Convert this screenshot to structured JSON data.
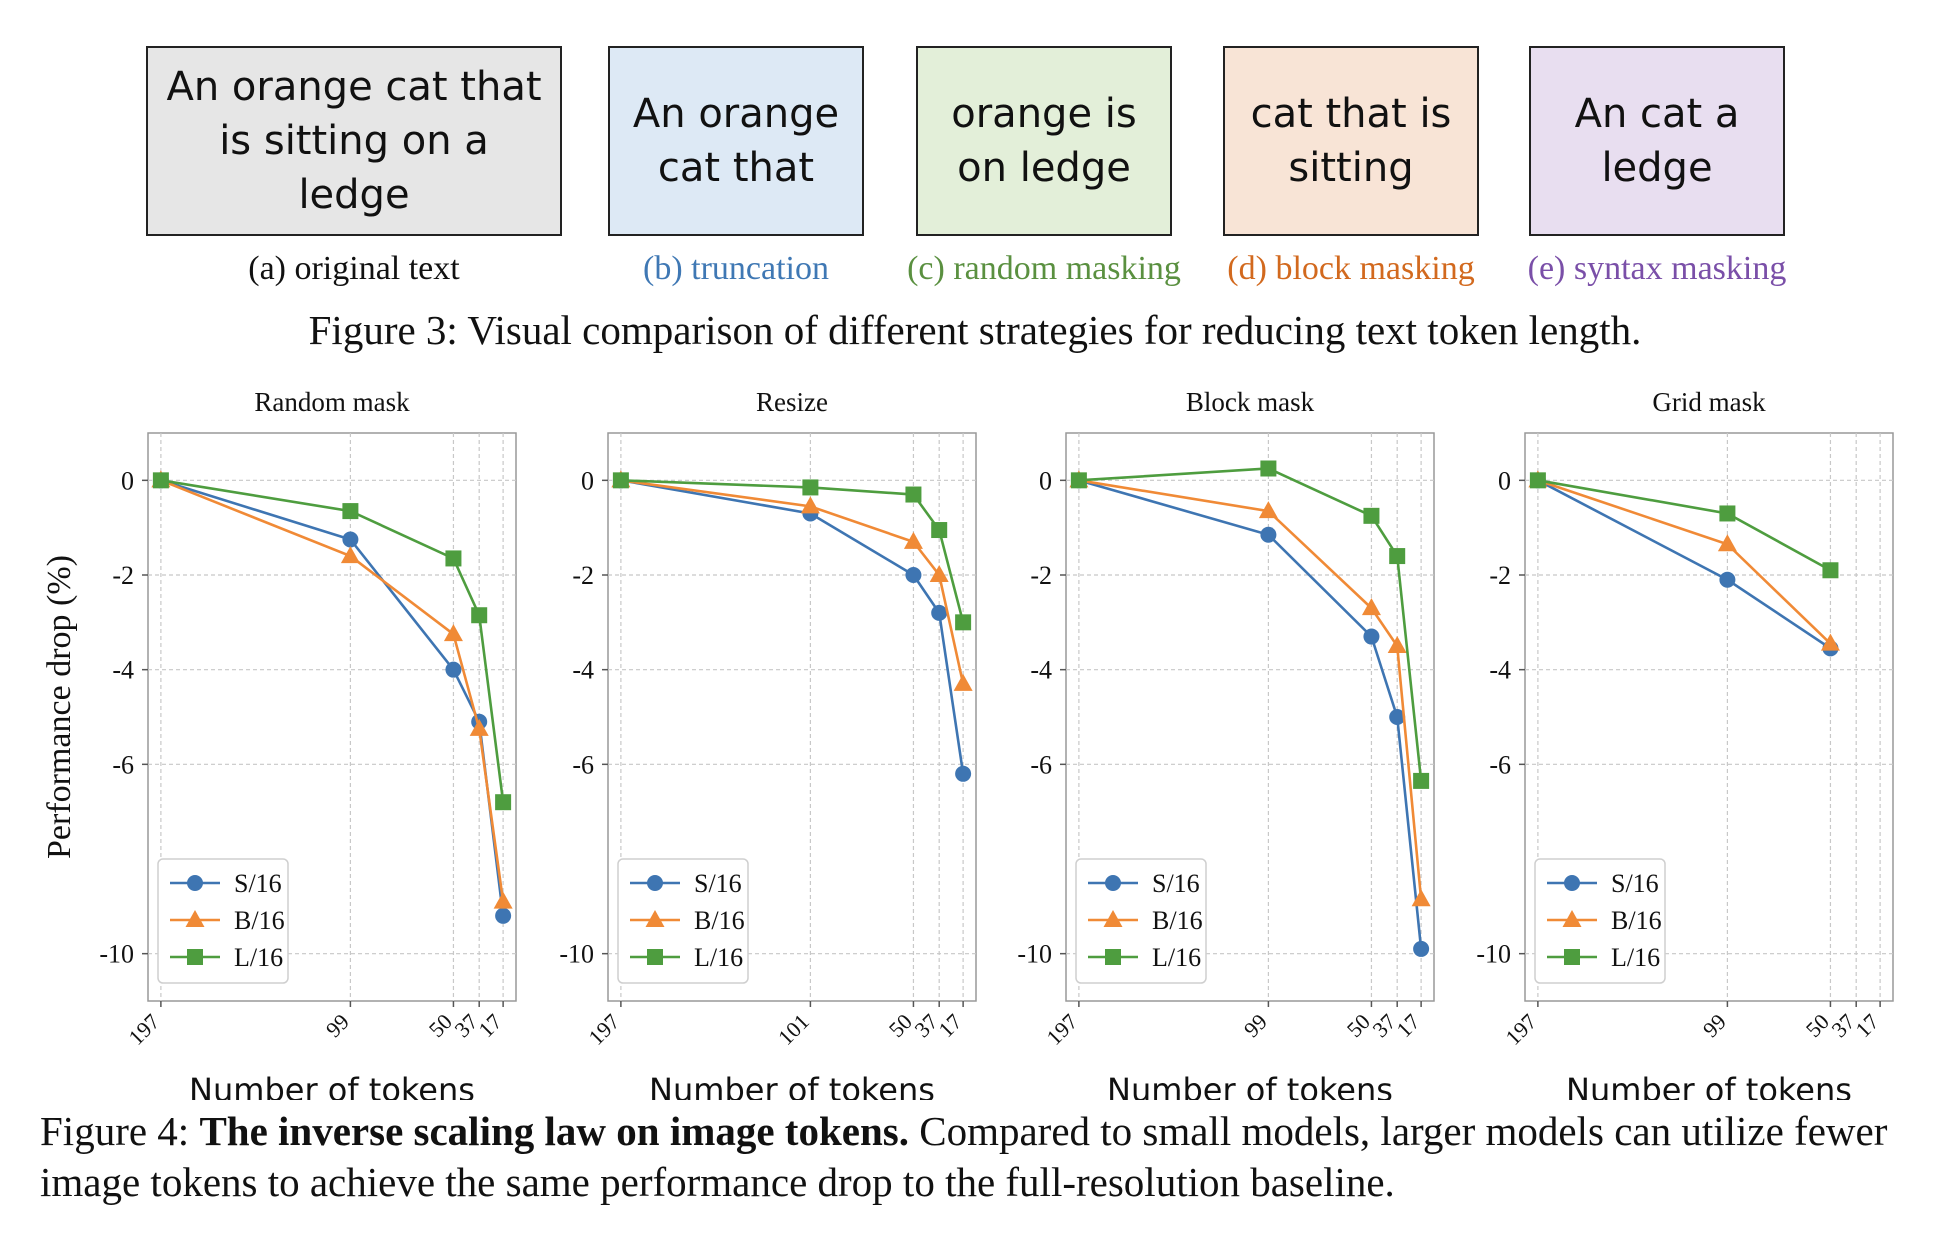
{
  "fig3": {
    "boxes": [
      {
        "text": "An orange cat that is sitting on a ledge",
        "caption": "(a) original text",
        "fill": "#e6e6e6",
        "caption_color": "#111111"
      },
      {
        "text": "An orange cat that",
        "caption": "(b) truncation",
        "fill": "#dde9f5",
        "caption_color": "#3f78b4"
      },
      {
        "text": "orange is on ledge",
        "caption": "(c) random masking",
        "fill": "#e3efd9",
        "caption_color": "#5a9040"
      },
      {
        "text": "cat that is sitting",
        "caption": "(d) block masking",
        "fill": "#f8e4d6",
        "caption_color": "#d2691e"
      },
      {
        "text": "An cat a ledge",
        "caption": "(e) syntax masking",
        "fill": "#e8def0",
        "caption_color": "#7a4fa8"
      }
    ],
    "caption": "Figure 3: Visual comparison of different strategies for reducing text token length."
  },
  "chart_data": [
    {
      "type": "line",
      "title": "Random mask",
      "xlabel": "Number of tokens",
      "ylabel": "Performance drop (%)",
      "x_ticks": [
        "197",
        "99",
        "50",
        "37",
        "17"
      ],
      "y_ticks": [
        0,
        -2,
        -4,
        -6,
        -10
      ],
      "ylim": [
        -11.0,
        1.0
      ],
      "grid": true,
      "legend": "bottom-left",
      "series": [
        {
          "name": "S/16",
          "color": "#3e75b2",
          "marker": "circle",
          "x": [
            "197",
            "99",
            "50",
            "37",
            "17"
          ],
          "y": [
            0,
            -1.25,
            -4.0,
            -5.1,
            -9.2
          ]
        },
        {
          "name": "B/16",
          "color": "#f08a36",
          "marker": "triangle",
          "x": [
            "197",
            "99",
            "50",
            "37",
            "17"
          ],
          "y": [
            0,
            -1.6,
            -3.25,
            -5.25,
            -8.9
          ]
        },
        {
          "name": "L/16",
          "color": "#4e9d3f",
          "marker": "square",
          "x": [
            "197",
            "99",
            "50",
            "37",
            "17"
          ],
          "y": [
            0,
            -0.65,
            -1.65,
            -2.85,
            -6.8
          ]
        }
      ]
    },
    {
      "type": "line",
      "title": "Resize",
      "xlabel": "Number of tokens",
      "ylabel": "",
      "x_ticks": [
        "197",
        "101",
        "50",
        "37",
        "17"
      ],
      "y_ticks": [
        0,
        -2,
        -4,
        -6,
        -10
      ],
      "ylim": [
        -11.0,
        1.0
      ],
      "grid": true,
      "legend": "bottom-left",
      "series": [
        {
          "name": "S/16",
          "color": "#3e75b2",
          "marker": "circle",
          "x": [
            "197",
            "101",
            "50",
            "37",
            "17"
          ],
          "y": [
            0,
            -0.7,
            -2.0,
            -2.8,
            -6.2
          ]
        },
        {
          "name": "B/16",
          "color": "#f08a36",
          "marker": "triangle",
          "x": [
            "197",
            "101",
            "50",
            "37",
            "17"
          ],
          "y": [
            0,
            -0.55,
            -1.3,
            -2.0,
            -4.3
          ]
        },
        {
          "name": "L/16",
          "color": "#4e9d3f",
          "marker": "square",
          "x": [
            "197",
            "101",
            "50",
            "37",
            "17"
          ],
          "y": [
            0,
            -0.15,
            -0.3,
            -1.05,
            -3.0
          ]
        }
      ]
    },
    {
      "type": "line",
      "title": "Block mask",
      "xlabel": "Number of tokens",
      "ylabel": "",
      "x_ticks": [
        "197",
        "99",
        "50",
        "37",
        "17"
      ],
      "y_ticks": [
        0,
        -2,
        -4,
        -6,
        -10
      ],
      "ylim": [
        -11.0,
        1.0
      ],
      "grid": true,
      "legend": "bottom-left",
      "series": [
        {
          "name": "S/16",
          "color": "#3e75b2",
          "marker": "circle",
          "x": [
            "197",
            "99",
            "50",
            "37",
            "17"
          ],
          "y": [
            0,
            -1.15,
            -3.3,
            -5.0,
            -9.9
          ]
        },
        {
          "name": "B/16",
          "color": "#f08a36",
          "marker": "triangle",
          "x": [
            "197",
            "99",
            "50",
            "37",
            "17"
          ],
          "y": [
            0,
            -0.65,
            -2.7,
            -3.5,
            -8.85
          ]
        },
        {
          "name": "L/16",
          "color": "#4e9d3f",
          "marker": "square",
          "x": [
            "197",
            "99",
            "50",
            "37",
            "17"
          ],
          "y": [
            0,
            0.25,
            -0.75,
            -1.6,
            -6.35
          ]
        }
      ]
    },
    {
      "type": "line",
      "title": "Grid mask",
      "xlabel": "Number of tokens",
      "ylabel": "",
      "x_ticks": [
        "197",
        "99",
        "50",
        "37",
        "17"
      ],
      "y_ticks": [
        0,
        -2,
        -4,
        -6,
        -10
      ],
      "ylim": [
        -11.0,
        1.0
      ],
      "grid": true,
      "legend": "bottom-left",
      "series": [
        {
          "name": "S/16",
          "color": "#3e75b2",
          "marker": "circle",
          "x": [
            "197",
            "99",
            "50"
          ],
          "y": [
            0,
            -2.1,
            -3.55
          ]
        },
        {
          "name": "B/16",
          "color": "#f08a36",
          "marker": "triangle",
          "x": [
            "197",
            "99",
            "50"
          ],
          "y": [
            0,
            -1.35,
            -3.45
          ]
        },
        {
          "name": "L/16",
          "color": "#4e9d3f",
          "marker": "square",
          "x": [
            "197",
            "99",
            "50"
          ],
          "y": [
            0,
            -0.7,
            -1.9
          ]
        }
      ]
    }
  ],
  "fig4": {
    "label": "Figure 4:",
    "bold": "The inverse scaling law on image tokens.",
    "rest": "Compared to small models, larger models can utilize fewer image tokens to achieve the same performance drop to the full-resolution baseline."
  }
}
